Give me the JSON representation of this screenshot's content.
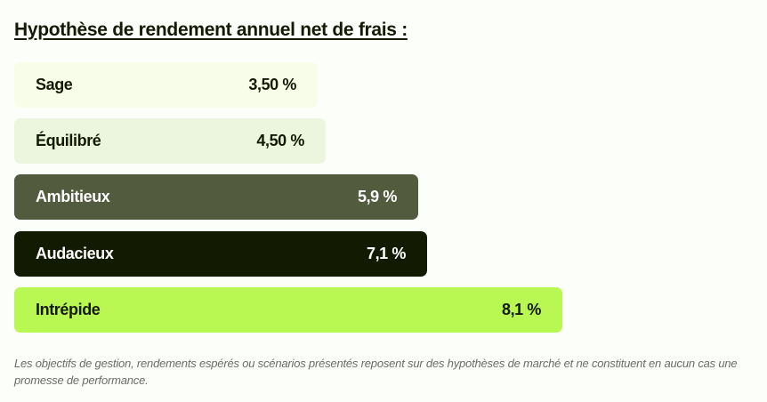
{
  "title": "Hypothèse de rendement annuel net de frais :",
  "profiles": [
    {
      "label": "Sage",
      "value": "3,50 %",
      "color": "#f7fde8"
    },
    {
      "label": "Équilibré",
      "value": "4,50 %",
      "color": "#ecf5dd"
    },
    {
      "label": "Ambitieux",
      "value": "5,9 %",
      "color": "#535b3e"
    },
    {
      "label": "Audacieux",
      "value": "7,1 %",
      "color": "#131a02"
    },
    {
      "label": "Intrépide",
      "value": "8,1 %",
      "color": "#b9f752"
    }
  ],
  "disclaimer": "Les objectifs de gestion, rendements espérés ou scénarios présentés reposent sur des hypothèses de marché et ne constituent en aucun cas une promesse de performance."
}
